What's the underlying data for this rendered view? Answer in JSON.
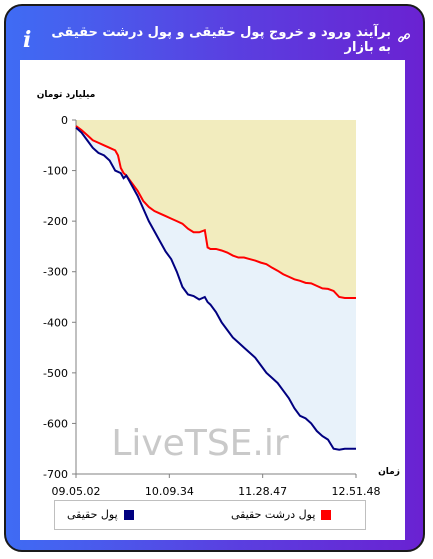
{
  "header": {
    "title": "برآیند ورود و خروج پول حقیقی و پول درشت حقیقی به بازار",
    "info_icon": "info-icon",
    "link_icon": "link-icon"
  },
  "colors": {
    "series1": "#000080",
    "series2": "#ff0000",
    "fill_upper": "#f2ecbe",
    "fill_lower": "#e8f2fa"
  },
  "chart_data": {
    "type": "line",
    "ylabel": "میلیارد تومان",
    "xlabel": "زمان",
    "ylim": [
      -700,
      0
    ],
    "yticks": [
      0,
      -100,
      -200,
      -300,
      -400,
      -500,
      -600,
      -700
    ],
    "xticks": [
      "09.05.02",
      "10.09.34",
      "11.28.47",
      "12.51.48"
    ],
    "watermark": "LiveTSE.ir",
    "series": [
      {
        "name": "پول حقیقی",
        "color": "#000080",
        "x": [
          0,
          0.02,
          0.04,
          0.06,
          0.08,
          0.1,
          0.12,
          0.14,
          0.16,
          0.17,
          0.18,
          0.2,
          0.22,
          0.24,
          0.26,
          0.28,
          0.3,
          0.32,
          0.34,
          0.36,
          0.38,
          0.4,
          0.42,
          0.44,
          0.46,
          0.47,
          0.48,
          0.5,
          0.52,
          0.54,
          0.56,
          0.58,
          0.6,
          0.62,
          0.64,
          0.66,
          0.68,
          0.7,
          0.72,
          0.74,
          0.76,
          0.78,
          0.8,
          0.82,
          0.84,
          0.86,
          0.88,
          0.9,
          0.92,
          0.94,
          0.96,
          0.98,
          1.0
        ],
        "values": [
          -15,
          -25,
          -40,
          -55,
          -65,
          -70,
          -80,
          -100,
          -105,
          -115,
          -110,
          -130,
          -150,
          -175,
          -200,
          -220,
          -240,
          -260,
          -275,
          -300,
          -330,
          -345,
          -348,
          -355,
          -350,
          -360,
          -365,
          -380,
          -400,
          -415,
          -430,
          -440,
          -450,
          -460,
          -470,
          -485,
          -500,
          -510,
          -520,
          -535,
          -550,
          -570,
          -585,
          -590,
          -600,
          -615,
          -625,
          -632,
          -650,
          -652,
          -650,
          -650,
          -650
        ]
      },
      {
        "name": "پول درشت حقیقی",
        "color": "#ff0000",
        "x": [
          0,
          0.02,
          0.04,
          0.06,
          0.08,
          0.1,
          0.12,
          0.14,
          0.15,
          0.16,
          0.17,
          0.18,
          0.2,
          0.22,
          0.24,
          0.26,
          0.28,
          0.3,
          0.32,
          0.34,
          0.36,
          0.38,
          0.4,
          0.42,
          0.44,
          0.46,
          0.47,
          0.48,
          0.5,
          0.52,
          0.54,
          0.56,
          0.58,
          0.6,
          0.62,
          0.64,
          0.66,
          0.68,
          0.7,
          0.72,
          0.74,
          0.76,
          0.78,
          0.8,
          0.82,
          0.84,
          0.86,
          0.88,
          0.9,
          0.92,
          0.94,
          0.96,
          0.98,
          1.0
        ],
        "values": [
          -12,
          -20,
          -30,
          -40,
          -45,
          -50,
          -55,
          -60,
          -70,
          -95,
          -105,
          -110,
          -125,
          -140,
          -160,
          -172,
          -180,
          -185,
          -190,
          -195,
          -200,
          -205,
          -215,
          -222,
          -222,
          -218,
          -252,
          -255,
          -255,
          -258,
          -262,
          -268,
          -272,
          -272,
          -275,
          -278,
          -282,
          -285,
          -292,
          -298,
          -305,
          -310,
          -315,
          -318,
          -322,
          -323,
          -328,
          -333,
          -334,
          -338,
          -350,
          -352,
          -352,
          -352
        ]
      }
    ],
    "legend": [
      "پول حقیقی",
      "پول درشت حقیقی"
    ],
    "legend_position": "bottom"
  }
}
